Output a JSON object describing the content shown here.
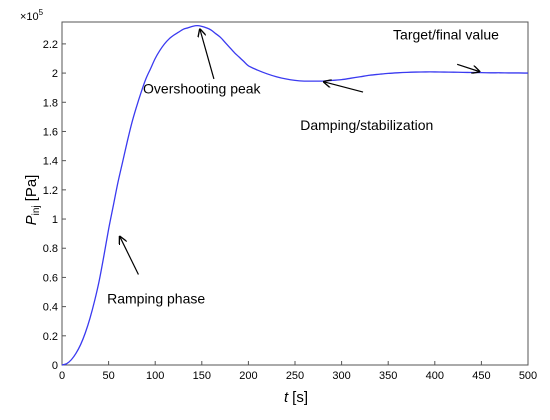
{
  "chart_data": {
    "type": "line",
    "title": "",
    "xlabel_var": "t",
    "xlabel_unit": "[s]",
    "ylabel_var": "P",
    "ylabel_sub": "inj",
    "ylabel_unit": "[Pa]",
    "y_multiplier": "×10",
    "y_multiplier_exp": "5",
    "xlim": [
      0,
      500
    ],
    "ylim": [
      0,
      2.35
    ],
    "grid": true,
    "x_ticks": [
      0,
      50,
      100,
      150,
      200,
      250,
      300,
      350,
      400,
      450,
      500
    ],
    "x_tick_labels": [
      "0",
      "50",
      "100",
      "150",
      "200",
      "250",
      "300",
      "350",
      "400",
      "450",
      "500"
    ],
    "y_ticks": [
      0,
      0.2,
      0.4,
      0.6,
      0.8,
      1.0,
      1.2,
      1.4,
      1.6,
      1.8,
      2.0,
      2.2
    ],
    "y_tick_labels": [
      "0",
      "0.2",
      "0.4",
      "0.6",
      "0.8",
      "1",
      "1.2",
      "1.4",
      "1.6",
      "1.8",
      "2",
      "2.2"
    ],
    "line_color": "#3a3af0",
    "series": [
      {
        "x": [
          0,
          5,
          10,
          15,
          20,
          25,
          30,
          35,
          40,
          45,
          50,
          55,
          60,
          65,
          70,
          75,
          80,
          85,
          90,
          95,
          100,
          105,
          110,
          115,
          120,
          125,
          130,
          135,
          140,
          145,
          150,
          155,
          160,
          165,
          170,
          175,
          180,
          185,
          190,
          195,
          200,
          210,
          220,
          230,
          240,
          250,
          260,
          270,
          280,
          290,
          300,
          310,
          320,
          330,
          340,
          350,
          360,
          370,
          380,
          390,
          400,
          410,
          420,
          430,
          440,
          450,
          460,
          470,
          480,
          490,
          500
        ],
        "y": [
          0,
          0.009,
          0.036,
          0.08,
          0.14,
          0.22,
          0.32,
          0.44,
          0.58,
          0.75,
          0.93,
          1.09,
          1.25,
          1.39,
          1.53,
          1.66,
          1.77,
          1.87,
          1.96,
          2.03,
          2.1,
          2.155,
          2.2,
          2.235,
          2.26,
          2.28,
          2.3,
          2.31,
          2.32,
          2.325,
          2.32,
          2.31,
          2.295,
          2.27,
          2.245,
          2.21,
          2.175,
          2.14,
          2.11,
          2.08,
          2.05,
          2.02,
          1.995,
          1.975,
          1.96,
          1.95,
          1.945,
          1.945,
          1.945,
          1.95,
          1.955,
          1.965,
          1.975,
          1.985,
          1.992,
          1.998,
          2.002,
          2.005,
          2.007,
          2.008,
          2.008,
          2.007,
          2.006,
          2.005,
          2.004,
          2.003,
          2.002,
          2.002,
          2.001,
          2.001,
          2.0
        ]
      }
    ],
    "annotations": [
      {
        "text": "Overshooting peak",
        "x": 150,
        "y": 1.86,
        "arrow_to_x": 148,
        "arrow_to_y": 2.3,
        "arrow_from_x": 163,
        "arrow_from_y": 1.96
      },
      {
        "text": "Target/final value",
        "x": 412,
        "y": 2.23,
        "arrow_to_x": 448,
        "arrow_to_y": 2.01,
        "arrow_from_x": 424,
        "arrow_from_y": 2.06
      },
      {
        "text": "Damping/stabilization",
        "x": 327,
        "y": 1.61,
        "arrow_to_x": 281,
        "arrow_to_y": 1.94,
        "arrow_from_x": 323,
        "arrow_from_y": 1.87
      },
      {
        "text": "Ramping phase",
        "x": 101,
        "y": 0.42,
        "arrow_to_x": 62,
        "arrow_to_y": 0.88,
        "arrow_from_x": 82,
        "arrow_from_y": 0.62
      }
    ]
  }
}
